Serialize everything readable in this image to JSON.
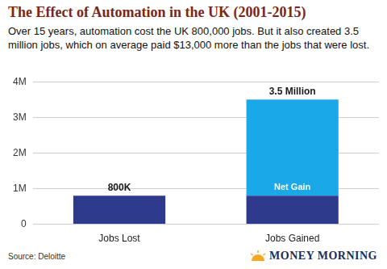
{
  "chart_data": {
    "type": "bar",
    "title": "The Effect of Automation in the UK (2001-2015)",
    "subtitle": "Over 15 years, automation cost the UK 800,000 jobs. But it also created 3.5 million jobs, which on average paid $13,000 more than the jobs that were lost.",
    "categories": [
      "Jobs Lost",
      "Jobs Gained"
    ],
    "series": [
      {
        "color": "#2e3a8c",
        "values": [
          800000,
          800000
        ]
      },
      {
        "color": "#1ba8e8",
        "values": [
          null,
          2700000
        ]
      }
    ],
    "stacked": true,
    "annotations": [
      {
        "text": "800K",
        "category": "Jobs Lost",
        "value": 800000
      },
      {
        "text": "3.5 Million",
        "category": "Jobs Gained",
        "value": 3500000
      },
      {
        "text": "Net Gain",
        "category": "Jobs Gained"
      }
    ],
    "ylim": [
      0,
      4000000
    ],
    "yticks": [
      0,
      {
        "value": 1000000,
        "label": "1M"
      },
      {
        "value": 2000000,
        "label": "2M"
      },
      {
        "value": 3000000,
        "label": "3M"
      },
      {
        "value": 4000000,
        "label": "4M"
      }
    ],
    "grid": true,
    "source": "Source: Deloitte",
    "logo": "MONEY MORNING"
  }
}
